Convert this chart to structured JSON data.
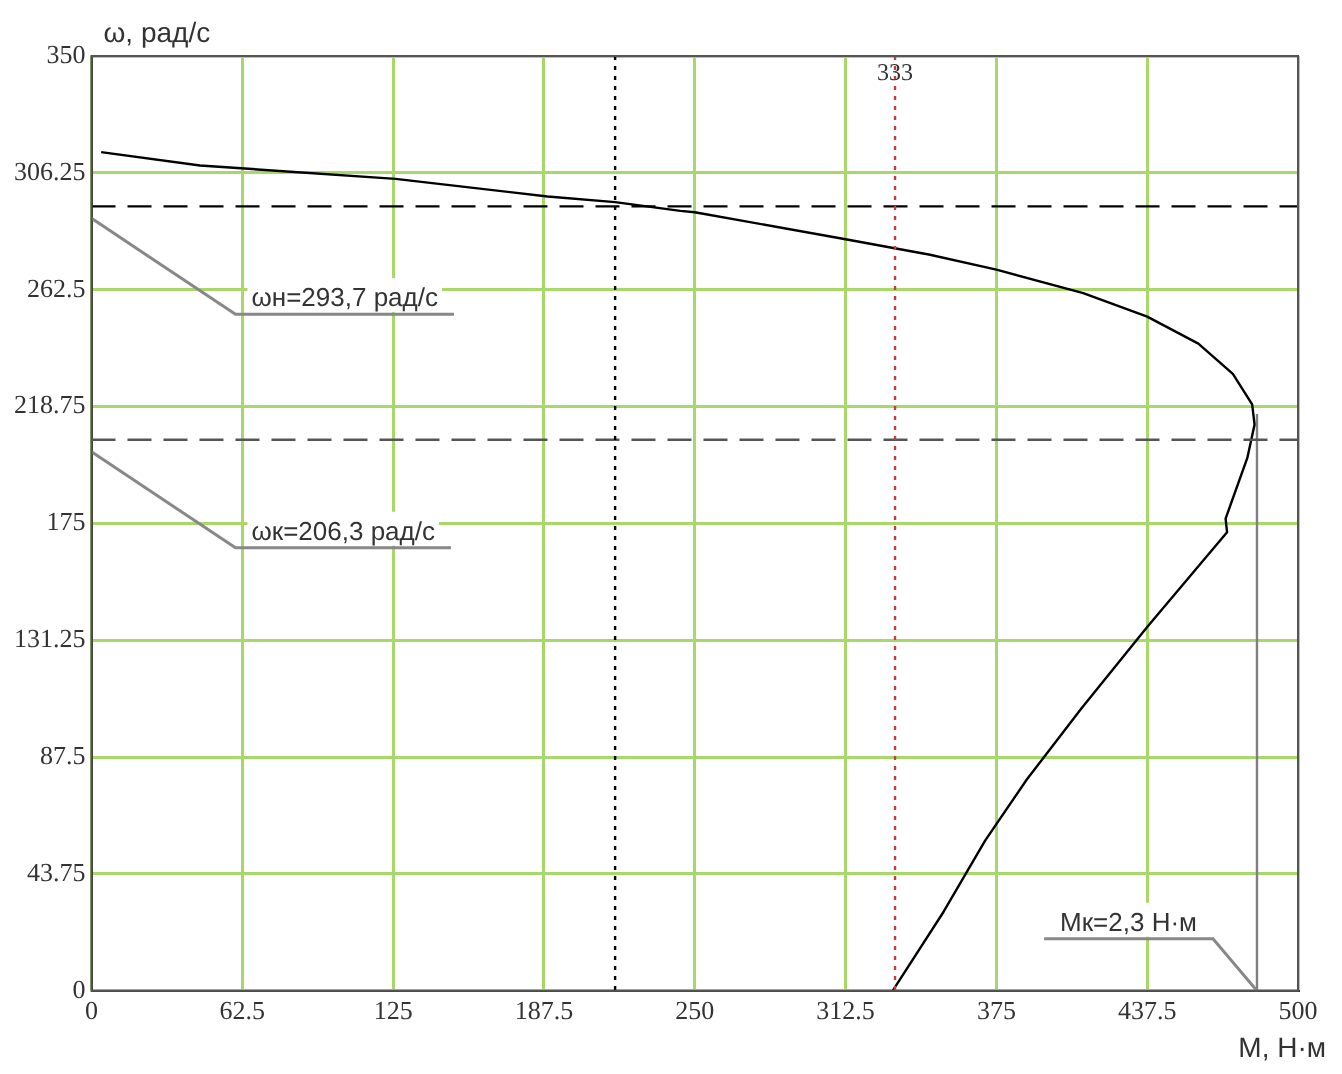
{
  "chart_data": {
    "type": "line",
    "xlabel": "M, Н·м",
    "ylabel": "ω, рад/с",
    "xlim": [
      0,
      500
    ],
    "xticks": [
      0,
      62.5,
      125,
      187.5,
      250,
      312.5,
      375,
      437.5,
      500
    ],
    "ylim": [
      0,
      350
    ],
    "yticks": [
      0,
      43.75,
      87.5,
      131.25,
      175,
      218.75,
      262.5,
      306.25,
      350
    ],
    "grid": true,
    "legend": false,
    "marker": "none",
    "series": [
      {
        "color": "#000000",
        "x": [
          4,
          45,
          126,
          189,
          217,
          244,
          250,
          312.5,
          347.5,
          375,
          411,
          437.5,
          458.7,
          473,
          481,
          482,
          479,
          470,
          470.6,
          437.5,
          410.3,
          387.6,
          370.4,
          353.2,
          332
        ],
        "values": [
          314,
          309,
          304,
          297.4,
          295.3,
          292,
          291.5,
          281.4,
          275.6,
          270,
          261.2,
          252.4,
          242.3,
          231,
          219.6,
          212,
          199.5,
          176.8,
          171.7,
          136.2,
          105.8,
          79.1,
          56.3,
          29.7,
          0
        ]
      },
      {
        "color": "#808080",
        "x": [
          483,
          483
        ],
        "values": [
          0,
          216
        ]
      }
    ],
    "ref_lines": [
      {
        "axis": "y",
        "value": 293.7,
        "label": "ωн=293,7 рад/с",
        "color": "#000000",
        "line_style": "dashed"
      },
      {
        "axis": "y",
        "value": 206.3,
        "label": "ωк=206,3 рад/с",
        "color": "#555555",
        "line_style": "dashed"
      },
      {
        "axis": "x",
        "value": 217,
        "color": "#000000",
        "line_style": "dotted"
      },
      {
        "axis": "x",
        "value": 333,
        "label": "333",
        "color": "#c04040",
        "line_style": "dotted"
      }
    ],
    "annotations": [
      {
        "text": "Мк=2,3 Н·м",
        "x": 483,
        "y": 0
      }
    ]
  }
}
